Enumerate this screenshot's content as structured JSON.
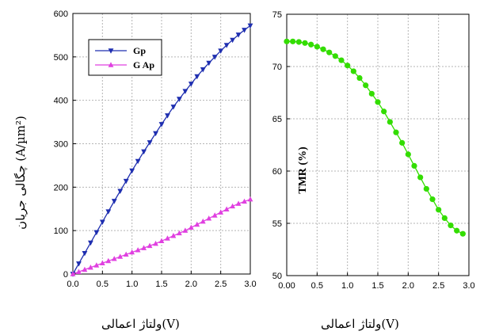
{
  "colors": {
    "gp": "#1f2fb0",
    "gap": "#e040e0",
    "tmr": "#33dd00",
    "grid": "#b5b5b5"
  },
  "captions": {
    "left": "ولتاژ اعمالی(V)",
    "right": "ولتاژ اعمالی(V)"
  },
  "chart_data": [
    {
      "type": "line",
      "ylabel": "چگالی جریان (A/µm²)",
      "xlabel": "",
      "xlim": [
        0,
        3
      ],
      "ylim": [
        0,
        600
      ],
      "xticks": [
        0.0,
        0.5,
        1.0,
        1.5,
        2.0,
        2.5,
        3.0
      ],
      "xtick_labels": [
        "0.0",
        "0.5",
        "1.0",
        "1.5",
        "2.0",
        "2.5",
        "3.0"
      ],
      "yticks": [
        0,
        100,
        200,
        300,
        400,
        500,
        600
      ],
      "ytick_labels": [
        "0",
        "100",
        "200",
        "300",
        "400",
        "500",
        "600"
      ],
      "grid": true,
      "legend": "top-left",
      "x": [
        0.0,
        0.1,
        0.2,
        0.3,
        0.4,
        0.5,
        0.6,
        0.7,
        0.8,
        0.9,
        1.0,
        1.1,
        1.2,
        1.3,
        1.4,
        1.5,
        1.6,
        1.7,
        1.8,
        1.9,
        2.0,
        2.1,
        2.2,
        2.3,
        2.4,
        2.5,
        2.6,
        2.7,
        2.8,
        2.9,
        3.0
      ],
      "series": [
        {
          "name": "Gp",
          "marker": "triangle-down",
          "color_key": "gp",
          "values": [
            0,
            24,
            48,
            72,
            96,
            120,
            144,
            168,
            191,
            214,
            238,
            260,
            282,
            303,
            324,
            345,
            365,
            385,
            403,
            421,
            438,
            455,
            471,
            486,
            500,
            514,
            527,
            539,
            551,
            562,
            572
          ]
        },
        {
          "name": "G Ap",
          "marker": "triangle-up",
          "color_key": "gap",
          "values": [
            0,
            5,
            10,
            15,
            20,
            25,
            30,
            35,
            40,
            45,
            50,
            55,
            60,
            65,
            70,
            76,
            82,
            88,
            94,
            100,
            107,
            114,
            121,
            128,
            135,
            142,
            149,
            156,
            162,
            167,
            172
          ]
        }
      ]
    },
    {
      "type": "line",
      "ylabel": "TMR (%)",
      "xlabel": "",
      "xlim": [
        0,
        3
      ],
      "ylim": [
        50,
        75
      ],
      "xticks": [
        0.0,
        0.5,
        1.0,
        1.5,
        2.0,
        2.5,
        3.0
      ],
      "xtick_labels": [
        "0.00",
        "0.5",
        "1.0",
        "1.5",
        "2.0",
        "2.5",
        "3.0"
      ],
      "yticks": [
        50,
        55,
        60,
        65,
        70,
        75
      ],
      "ytick_labels": [
        "50",
        "55",
        "60",
        "65",
        "70",
        "75"
      ],
      "grid": true,
      "series": [
        {
          "name": "",
          "marker": "circle",
          "color_key": "tmr",
          "x": [
            0.0,
            0.1,
            0.2,
            0.3,
            0.4,
            0.5,
            0.6,
            0.7,
            0.8,
            0.9,
            1.0,
            1.1,
            1.2,
            1.3,
            1.4,
            1.5,
            1.6,
            1.7,
            1.8,
            1.9,
            2.0,
            2.1,
            2.2,
            2.3,
            2.4,
            2.5,
            2.6,
            2.7,
            2.8,
            2.9
          ],
          "values": [
            72.4,
            72.4,
            72.35,
            72.25,
            72.1,
            71.9,
            71.65,
            71.35,
            71.0,
            70.6,
            70.1,
            69.55,
            68.9,
            68.2,
            67.4,
            66.6,
            65.7,
            64.7,
            63.7,
            62.7,
            61.6,
            60.5,
            59.4,
            58.3,
            57.3,
            56.3,
            55.5,
            54.8,
            54.3,
            54.0
          ]
        }
      ]
    }
  ]
}
